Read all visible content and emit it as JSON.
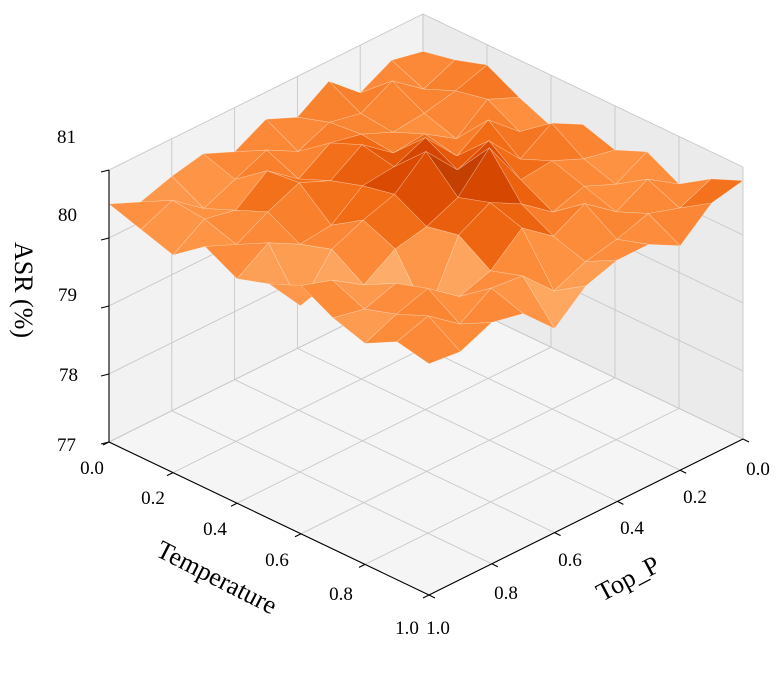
{
  "chart_data": {
    "type": "surface",
    "xlabel": "Temperature",
    "ylabel": "Top_P",
    "zlabel": "ASR (%)",
    "x_ticks": [
      "0.0",
      "0.2",
      "0.4",
      "0.6",
      "0.8",
      "1.0"
    ],
    "y_ticks": [
      "0.0",
      "0.2",
      "0.4",
      "0.6",
      "0.8",
      "1.0"
    ],
    "z_ticks": [
      "77",
      "78",
      "79",
      "80",
      "81"
    ],
    "xlim": [
      0,
      1
    ],
    "ylim": [
      0,
      1
    ],
    "zlim": [
      77,
      81
    ],
    "grid": true,
    "colormap": "Oranges",
    "x": [
      0.0,
      0.1,
      0.2,
      0.3,
      0.4,
      0.5,
      0.6,
      0.7,
      0.8,
      0.9,
      1.0
    ],
    "y": [
      0.0,
      0.1,
      0.2,
      0.3,
      0.4,
      0.5,
      0.6,
      0.7,
      0.8,
      0.9,
      1.0
    ],
    "z": [
      [
        80.45,
        80.55,
        80.7,
        80.45,
        80.25,
        80.5,
        80.35,
        80.55,
        80.3,
        80.6,
        80.8
      ],
      [
        80.55,
        80.35,
        80.55,
        80.65,
        80.4,
        80.75,
        80.45,
        80.3,
        80.6,
        80.4,
        80.7
      ],
      [
        80.3,
        80.7,
        80.45,
        80.3,
        80.8,
        80.45,
        80.65,
        80.5,
        80.35,
        80.55,
        80.3
      ],
      [
        80.7,
        80.45,
        80.4,
        80.6,
        80.5,
        80.95,
        80.6,
        80.35,
        80.7,
        80.4,
        80.55
      ],
      [
        80.4,
        80.55,
        80.6,
        80.55,
        81.0,
        80.75,
        81.3,
        80.7,
        80.45,
        80.3,
        80.55
      ],
      [
        80.6,
        80.35,
        80.7,
        80.9,
        80.8,
        81.25,
        80.8,
        80.95,
        80.8,
        80.1,
        80.4
      ],
      [
        80.35,
        80.6,
        80.4,
        80.6,
        80.75,
        80.85,
        80.6,
        80.7,
        80.4,
        80.55,
        80.0
      ],
      [
        80.55,
        80.4,
        80.75,
        80.8,
        80.4,
        80.7,
        80.5,
        79.75,
        80.25,
        80.6,
        80.45
      ],
      [
        80.45,
        80.2,
        80.4,
        80.6,
        80.35,
        80.5,
        80.2,
        80.45,
        80.6,
        80.3,
        80.55
      ],
      [
        80.3,
        80.55,
        80.5,
        80.35,
        80.6,
        79.9,
        80.5,
        80.3,
        80.45,
        80.65,
        80.35
      ],
      [
        80.5,
        80.35,
        80.2,
        80.55,
        80.3,
        80.45,
        80.65,
        80.4,
        80.25,
        80.5,
        80.4
      ]
    ]
  }
}
